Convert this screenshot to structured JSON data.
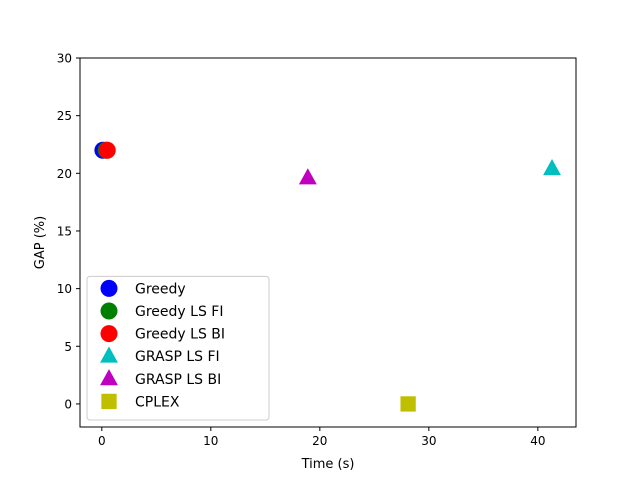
{
  "chart_data": {
    "type": "scatter",
    "title": "",
    "xlabel": "Time (s)",
    "ylabel": "GAP (%)",
    "xlim": [
      -2,
      43.5
    ],
    "ylim": [
      -2,
      30
    ],
    "xticks": [
      0,
      10,
      20,
      30,
      40
    ],
    "yticks": [
      0,
      5,
      10,
      15,
      20,
      25,
      30
    ],
    "grid": false,
    "legend_position": "lower-left",
    "series": [
      {
        "name": "Greedy",
        "marker": "circle",
        "color": "#0000ff",
        "points": [
          {
            "x": 0.1,
            "y": 22
          }
        ]
      },
      {
        "name": "Greedy LS FI",
        "marker": "circle",
        "color": "#008000",
        "points": [
          {
            "x": 0.4,
            "y": 22
          }
        ]
      },
      {
        "name": "Greedy LS BI",
        "marker": "circle",
        "color": "#ff0000",
        "points": [
          {
            "x": 0.5,
            "y": 22
          }
        ]
      },
      {
        "name": "GRASP LS FI",
        "marker": "triangle",
        "color": "#00bfbf",
        "points": [
          {
            "x": 41.3,
            "y": 20.4
          }
        ]
      },
      {
        "name": "GRASP LS BI",
        "marker": "triangle",
        "color": "#bf00bf",
        "points": [
          {
            "x": 18.9,
            "y": 19.6
          }
        ]
      },
      {
        "name": "CPLEX",
        "marker": "square",
        "color": "#bfbf00",
        "points": [
          {
            "x": 28.1,
            "y": 0
          }
        ]
      }
    ]
  }
}
